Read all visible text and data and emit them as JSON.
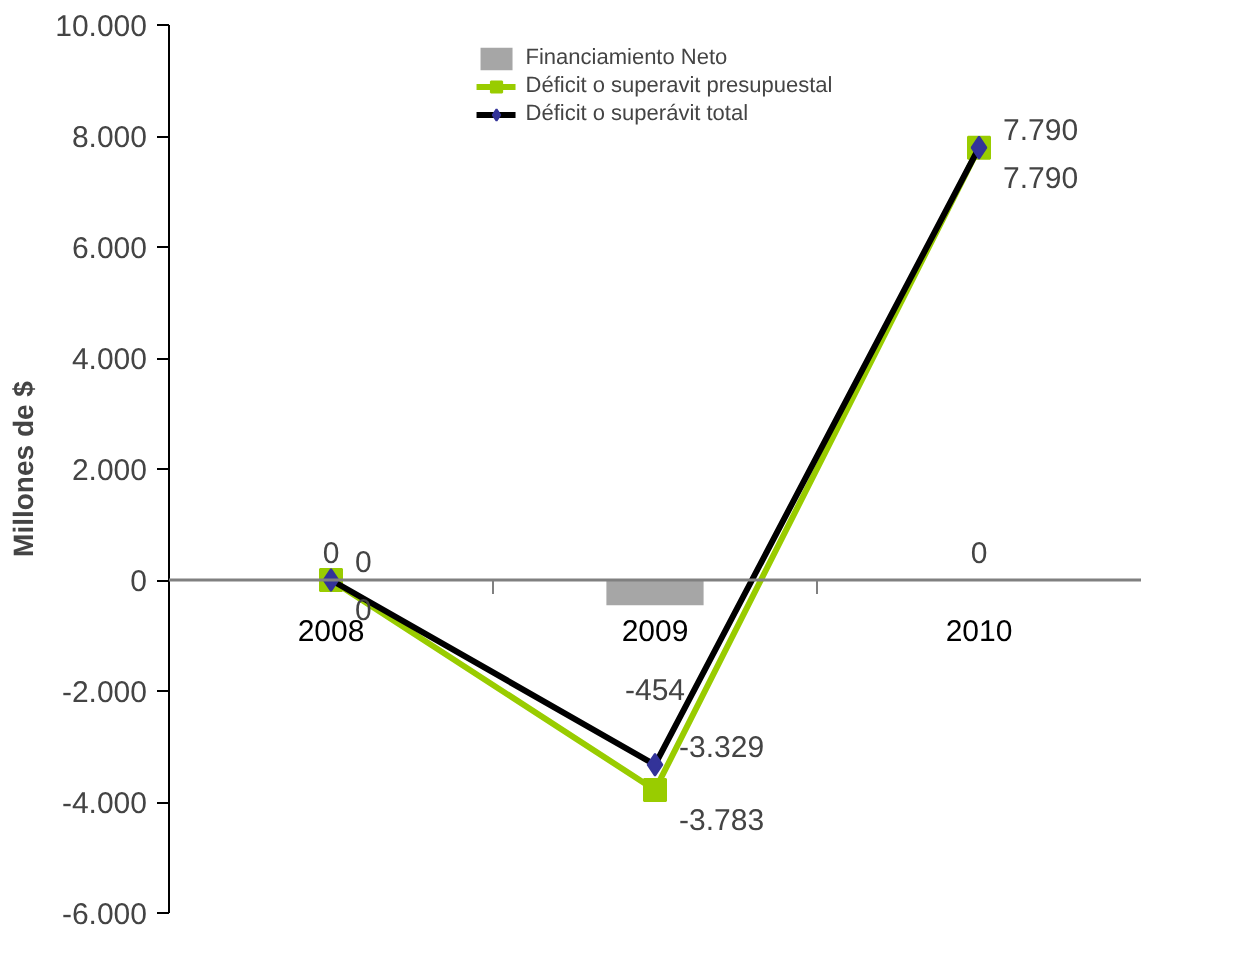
{
  "chart_data": {
    "type": "line",
    "ylabel": "Millones de $",
    "categories": [
      "2008",
      "2009",
      "2010"
    ],
    "series": [
      {
        "name": "Financiamiento Neto",
        "type": "bar",
        "color": "#a6a6a6",
        "values": [
          0,
          -454,
          0
        ],
        "value_labels": [
          "0",
          "-454",
          "0"
        ]
      },
      {
        "name": "Déficit o superavit presupuestal",
        "color": "#99cc00",
        "marker": "square",
        "values": [
          0,
          -3783,
          7790
        ],
        "value_labels": [
          "0",
          "-3.783",
          "7.790"
        ]
      },
      {
        "name": "Déficit o superávit total",
        "color": "#000000",
        "marker": "diamond",
        "values": [
          0,
          -3329,
          7790
        ],
        "value_labels": [
          "0",
          "-3.329",
          "7.790"
        ]
      }
    ],
    "ylim": [
      -6000,
      10000
    ],
    "yticks": [
      {
        "value": -6000,
        "label": "-6.000"
      },
      {
        "value": -4000,
        "label": "-4.000"
      },
      {
        "value": -2000,
        "label": "-2.000"
      },
      0,
      {
        "value": 2000,
        "label": "2.000"
      },
      {
        "value": 4000,
        "label": "4.000"
      },
      {
        "value": 6000,
        "label": "6.000"
      },
      {
        "value": 8000,
        "label": "8.000"
      },
      {
        "value": 10000,
        "label": "10.000"
      }
    ],
    "grid": false,
    "legend": "top"
  }
}
